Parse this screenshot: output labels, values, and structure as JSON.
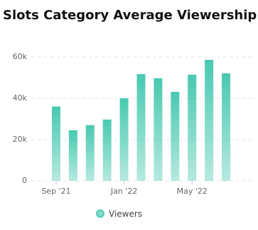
{
  "chart_data": {
    "type": "bar",
    "title": "Slots Category Average Viewership",
    "categories": [
      "Sep '21",
      null,
      null,
      null,
      "Jan '22",
      null,
      null,
      null,
      "May '22",
      null,
      null
    ],
    "series": [
      {
        "name": "Viewers",
        "color": "#48c9b0",
        "values": [
          36000,
          24500,
          27000,
          29700,
          40000,
          51700,
          49700,
          43100,
          51400,
          58600,
          52100
        ]
      }
    ],
    "ylim": [
      0,
      60000
    ],
    "yticks": [
      0,
      {
        "value": 20000,
        "label": "20k"
      },
      {
        "value": 40000,
        "label": "40k"
      },
      {
        "value": 60000,
        "label": "60k"
      }
    ],
    "grid": true,
    "legend": "bottom"
  }
}
